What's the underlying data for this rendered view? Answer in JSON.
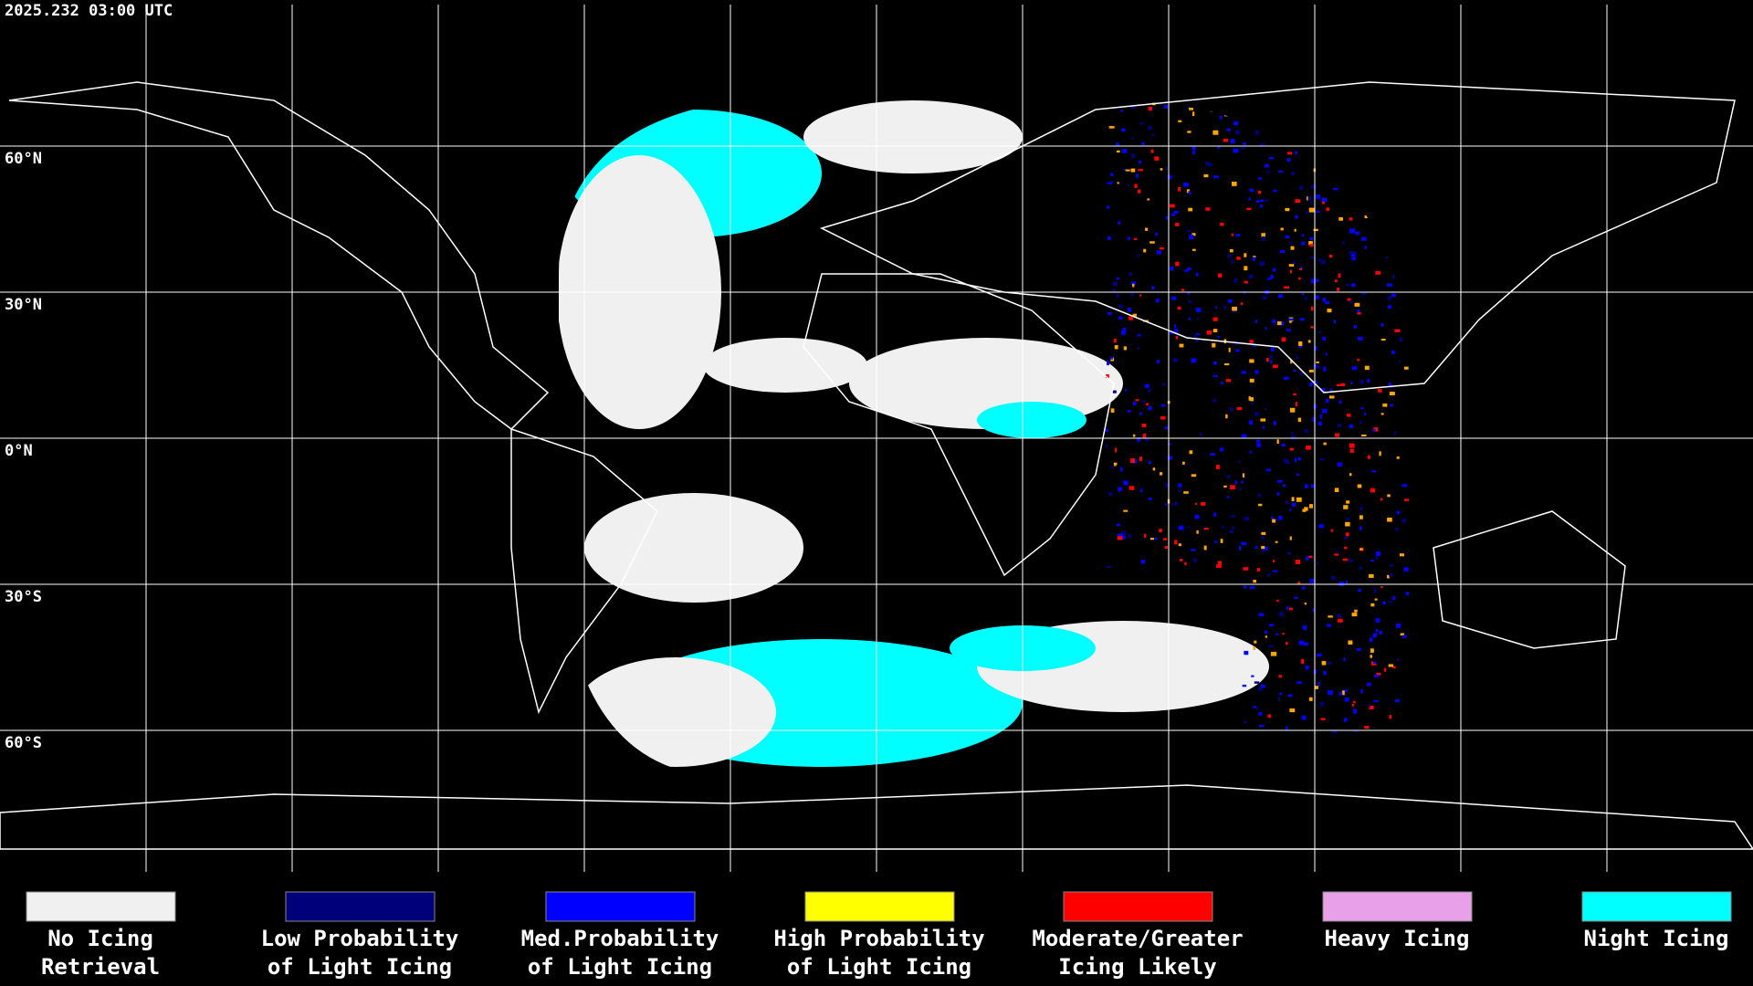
{
  "header": {
    "timestamp": "2025.232 03:00 UTC"
  },
  "map": {
    "lat_labels": [
      "60°N",
      "30°N",
      "0°N",
      "30°S",
      "60°S"
    ]
  },
  "legend": {
    "items": [
      {
        "label": [
          "No Icing",
          "Retrieval"
        ],
        "color": "#f0f0f0"
      },
      {
        "label": [
          "Low Probability",
          "of Light Icing"
        ],
        "color": "#00007a"
      },
      {
        "label": [
          "Med.Probability",
          "of Light Icing"
        ],
        "color": "#0000ff"
      },
      {
        "label": [
          "High Probability",
          "of Light Icing"
        ],
        "color": "#ffff00"
      },
      {
        "label": [
          "Moderate/Greater",
          "Icing Likely"
        ],
        "color": "#ff0000"
      },
      {
        "label": [
          "Heavy Icing"
        ],
        "color": "#e8a0e8"
      },
      {
        "label": [
          "Night Icing"
        ],
        "color": "#00ffff"
      }
    ]
  }
}
